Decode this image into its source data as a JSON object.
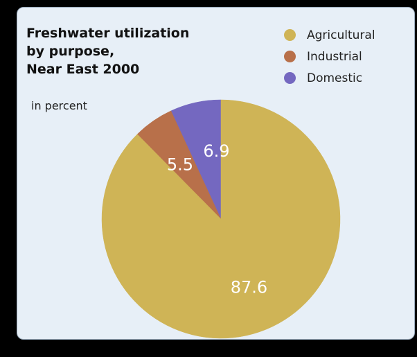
{
  "chart_data": {
    "type": "pie",
    "title_lines": [
      "Freshwater utilization",
      "by purpose,",
      "Near East 2000"
    ],
    "unit": "in percent",
    "legend_position": "top-right",
    "slices": [
      {
        "name": "Agricultural",
        "value": 87.6,
        "label": "87.6",
        "color": "#cfb456"
      },
      {
        "name": "Industrial",
        "value": 5.5,
        "label": "5.5",
        "color": "#b8704a"
      },
      {
        "name": "Domestic",
        "value": 6.9,
        "label": "6.9",
        "color": "#7468c0"
      }
    ]
  }
}
